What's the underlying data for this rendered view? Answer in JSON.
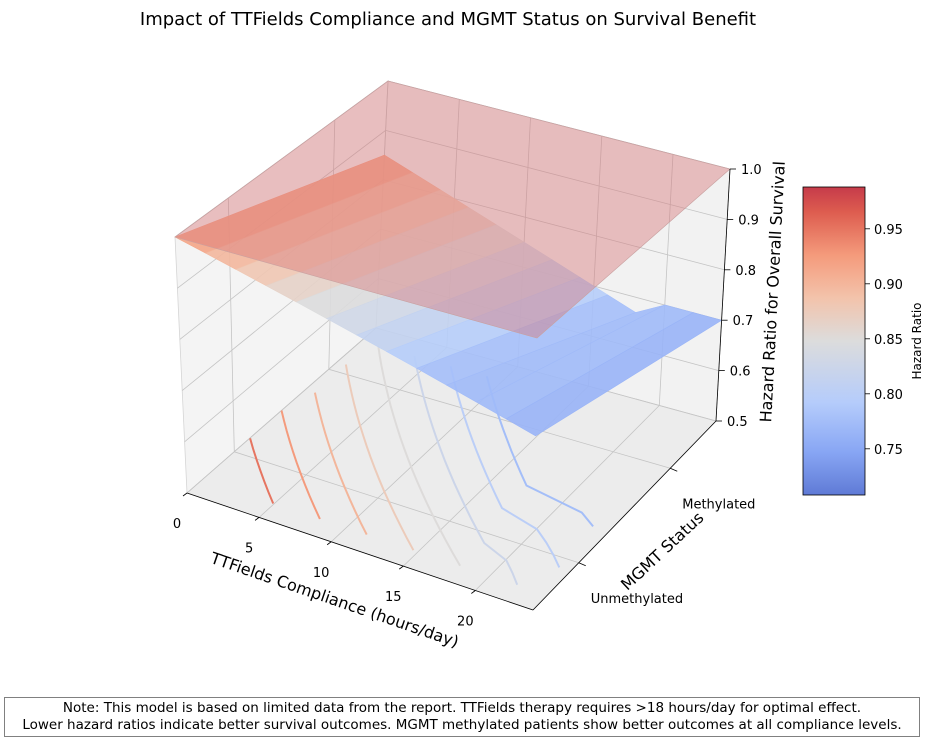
{
  "chart_data": {
    "type": "surface3d",
    "title": "Impact of TTFields Compliance and MGMT Status on Survival Benefit",
    "xlabel": "TTFields Compliance (hours/day)",
    "ylabel": "MGMT Status",
    "zlabel": "Hazard Ratio for Overall Survival",
    "x_ticks": [
      "0",
      "5",
      "10",
      "15",
      "20"
    ],
    "y_ticks": [
      "Unmethylated",
      "Methylated"
    ],
    "z_ticks": [
      "0.5",
      "0.6",
      "0.7",
      "0.8",
      "0.9",
      "1.0"
    ],
    "xlim": [
      0,
      24
    ],
    "zlim": [
      0.5,
      1.0
    ],
    "x": [
      0,
      2,
      4,
      6,
      8,
      10,
      12,
      14,
      16,
      18,
      20,
      22,
      24
    ],
    "series": [
      {
        "name": "Unmethylated",
        "values": [
          1.0,
          0.985,
          0.97,
          0.955,
          0.94,
          0.925,
          0.91,
          0.895,
          0.88,
          0.865,
          0.85,
          0.835,
          0.82
        ]
      },
      {
        "name": "Methylated",
        "values": [
          0.85,
          0.83,
          0.81,
          0.79,
          0.77,
          0.75,
          0.73,
          0.71,
          0.69,
          0.67,
          0.7,
          0.7,
          0.7
        ]
      }
    ],
    "reference_plane": 1.0,
    "contour_levels": [
      0.95,
      0.925,
      0.9,
      0.875,
      0.85,
      0.825,
      0.8,
      0.775
    ],
    "colorbar": {
      "label": "Hazard Ratio",
      "ticks": [
        "0.75",
        "0.80",
        "0.85",
        "0.90",
        "0.95"
      ],
      "range": [
        0.708,
        0.988
      ]
    },
    "colormap": "coolwarm",
    "grid": true
  },
  "note": {
    "line1": "Note: This model is based on limited data from the report. TTFields therapy requires >18 hours/day for optimal effect.",
    "line2": "Lower hazard ratios indicate better survival outcomes. MGMT methylated patients show better outcomes at all compliance levels."
  }
}
